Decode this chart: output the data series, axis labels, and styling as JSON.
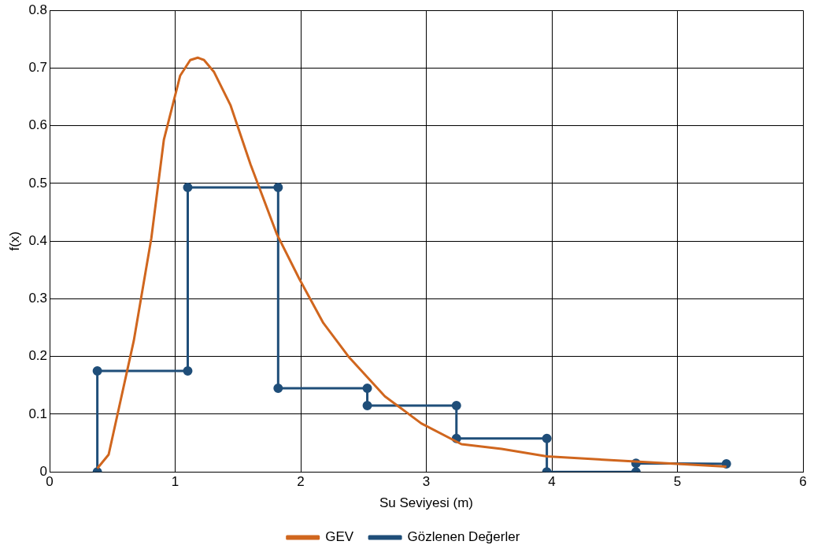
{
  "chart_data": {
    "type": "line",
    "xlabel": "Su Seviyesi (m)",
    "ylabel": "f(x)",
    "xlim": [
      0,
      6
    ],
    "xticks": [
      0,
      1,
      2,
      3,
      4,
      5,
      6
    ],
    "ylim": [
      0,
      0.8
    ],
    "yticks": [
      0,
      0.1,
      0.2,
      0.3,
      0.4,
      0.5,
      0.6,
      0.7,
      0.8
    ],
    "grid": true,
    "legend": "bottom",
    "series": [
      {
        "name": "GEV",
        "color": "#d0661e",
        "marker": "none",
        "x": [
          0.38,
          0.47,
          0.67,
          0.81,
          0.91,
          1.04,
          1.12,
          1.18,
          1.23,
          1.31,
          1.44,
          1.6,
          1.81,
          1.99,
          2.18,
          2.38,
          2.67,
          2.96,
          3.28,
          3.6,
          3.96,
          4.58,
          5.39
        ],
        "values": [
          0.006,
          0.03,
          0.227,
          0.405,
          0.576,
          0.687,
          0.714,
          0.718,
          0.714,
          0.693,
          0.636,
          0.533,
          0.412,
          0.334,
          0.258,
          0.2,
          0.131,
          0.084,
          0.048,
          0.04,
          0.027,
          0.019,
          0.009
        ]
      },
      {
        "name": "Gözlenen Değerler",
        "color": "#1f4e79",
        "marker": "circle",
        "x": [
          0.38,
          0.38,
          1.1,
          1.1,
          1.82,
          1.82,
          2.53,
          2.53,
          3.24,
          3.24,
          3.96,
          3.96,
          4.67,
          4.67,
          5.39
        ],
        "values": [
          0,
          0.175,
          0.175,
          0.493,
          0.493,
          0.145,
          0.145,
          0.115,
          0.115,
          0.058,
          0.058,
          0,
          0,
          0.015,
          0.014
        ]
      }
    ]
  }
}
